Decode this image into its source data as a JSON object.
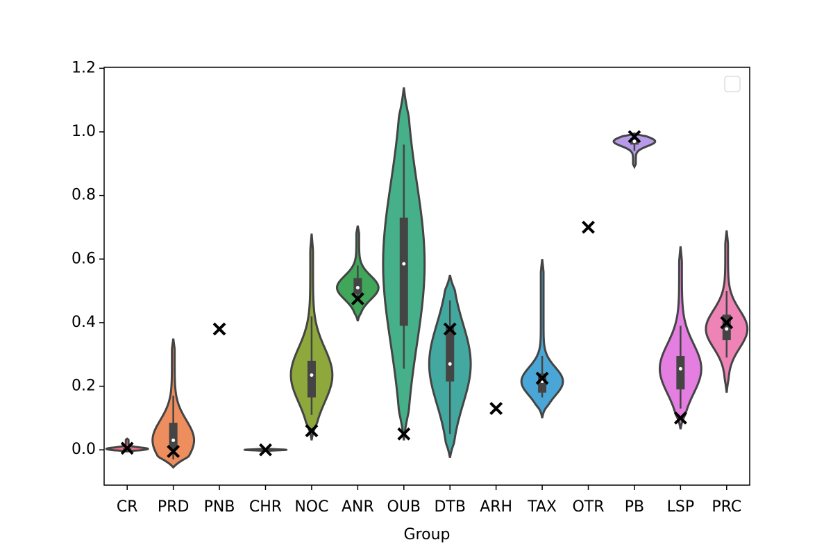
{
  "chart_data": {
    "type": "violin",
    "xlabel": "Group",
    "categories": [
      "CR",
      "PRD",
      "PNB",
      "CHR",
      "NOC",
      "ANR",
      "OUB",
      "DTB",
      "ARH",
      "TAX",
      "OTR",
      "PB",
      "LSP",
      "PRC"
    ],
    "violins": [
      {
        "color": "#f77189",
        "ymin": -0.005,
        "ymax": 0.035,
        "q1": 0.0,
        "median": 0.003,
        "q3": 0.006,
        "whisker_low": -0.002,
        "whisker_high": 0.01
      },
      {
        "color": "#ee8d5e",
        "ymin": -0.055,
        "ymax": 0.35,
        "q1": 0.0,
        "median": 0.03,
        "q3": 0.085,
        "whisker_low": -0.03,
        "whisker_high": 0.17
      },
      null,
      {
        "color": "#bb9832",
        "ymin": -0.003,
        "ymax": 0.003,
        "q1": -0.001,
        "median": 0.0,
        "q3": 0.001,
        "whisker_low": -0.002,
        "whisker_high": 0.002
      },
      {
        "color": "#8ea83c",
        "ymin": 0.03,
        "ymax": 0.68,
        "q1": 0.165,
        "median": 0.235,
        "q3": 0.28,
        "whisker_low": 0.11,
        "whisker_high": 0.42
      },
      {
        "color": "#3fa65a",
        "ymin": 0.405,
        "ymax": 0.705,
        "q1": 0.49,
        "median": 0.51,
        "q3": 0.54,
        "whisker_low": 0.47,
        "whisker_high": 0.58
      },
      {
        "color": "#45b089",
        "ymin": 0.03,
        "ymax": 1.14,
        "q1": 0.39,
        "median": 0.585,
        "q3": 0.73,
        "whisker_low": 0.255,
        "whisker_high": 0.96
      },
      {
        "color": "#42a8a0",
        "ymin": -0.025,
        "ymax": 0.55,
        "q1": 0.215,
        "median": 0.27,
        "q3": 0.385,
        "whisker_low": 0.05,
        "whisker_high": 0.47
      },
      null,
      {
        "color": "#4aa6d6",
        "ymin": 0.1,
        "ymax": 0.6,
        "q1": 0.18,
        "median": 0.215,
        "q3": 0.24,
        "whisker_low": 0.165,
        "whisker_high": 0.295
      },
      null,
      {
        "color": "#b79be8",
        "ymin": 0.89,
        "ymax": 0.995,
        "q1": 0.96,
        "median": 0.97,
        "q3": 0.98,
        "whisker_low": 0.94,
        "whisker_high": 0.995
      },
      {
        "color": "#e47ee0",
        "ymin": 0.065,
        "ymax": 0.64,
        "q1": 0.19,
        "median": 0.255,
        "q3": 0.295,
        "whisker_low": 0.13,
        "whisker_high": 0.39
      },
      {
        "color": "#ee84b5",
        "ymin": 0.18,
        "ymax": 0.69,
        "q1": 0.345,
        "median": 0.38,
        "q3": 0.425,
        "whisker_low": 0.29,
        "whisker_high": 0.5
      }
    ],
    "markers": [
      0.005,
      -0.005,
      0.38,
      0.0,
      0.06,
      0.475,
      0.05,
      0.38,
      0.13,
      0.225,
      0.7,
      0.985,
      0.1,
      0.4
    ],
    "marker_color": "#000000",
    "ylim": [
      -0.111,
      1.203
    ],
    "yticks": [
      {
        "value": 0,
        "label": "0.0"
      },
      0.2,
      0.4,
      0.6,
      0.8,
      {
        "value": 1,
        "label": "1.0"
      },
      1.2
    ]
  }
}
